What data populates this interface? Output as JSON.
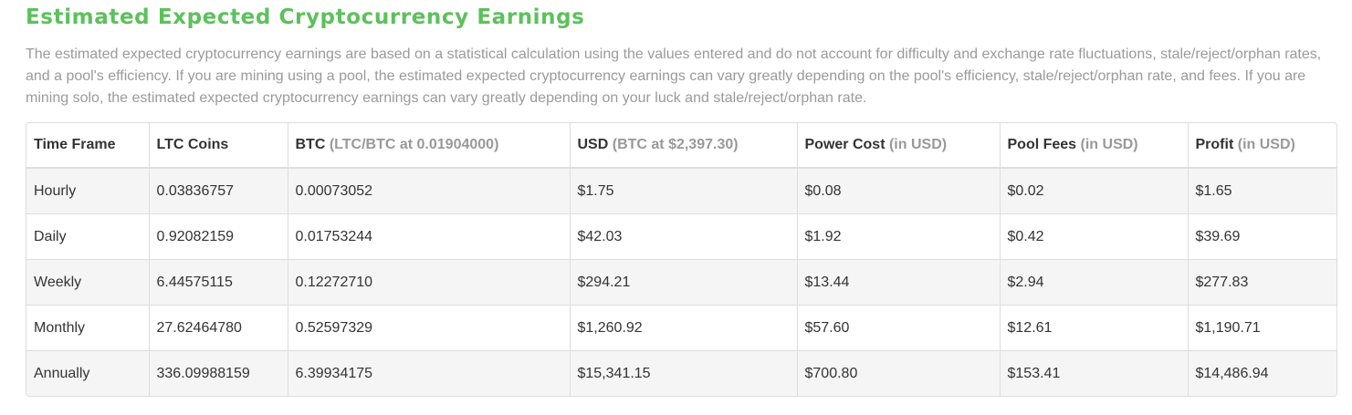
{
  "section": {
    "title": "Estimated Expected Cryptocurrency Earnings",
    "description": "The estimated expected cryptocurrency earnings are based on a statistical calculation using the values entered and do not account for difficulty and exchange rate fluctuations, stale/reject/orphan rates, and a pool's efficiency. If you are mining using a pool, the estimated expected cryptocurrency earnings can vary greatly depending on the pool's efficiency, stale/reject/orphan rate, and fees. If you are mining solo, the estimated expected cryptocurrency earnings can vary greatly depending on your luck and stale/reject/orphan rate."
  },
  "table": {
    "headers": [
      {
        "label": "Time Frame",
        "sub": ""
      },
      {
        "label": "LTC Coins",
        "sub": ""
      },
      {
        "label": "BTC",
        "sub": "(LTC/BTC at 0.01904000)"
      },
      {
        "label": "USD",
        "sub": "(BTC at $2,397.30)"
      },
      {
        "label": "Power Cost",
        "sub": "(in USD)"
      },
      {
        "label": "Pool Fees",
        "sub": "(in USD)"
      },
      {
        "label": "Profit",
        "sub": "(in USD)"
      }
    ],
    "rows": [
      [
        "Hourly",
        "0.03836757",
        "0.00073052",
        "$1.75",
        "$0.08",
        "$0.02",
        "$1.65"
      ],
      [
        "Daily",
        "0.92082159",
        "0.01753244",
        "$42.03",
        "$1.92",
        "$0.42",
        "$39.69"
      ],
      [
        "Weekly",
        "6.44575115",
        "0.12272710",
        "$294.21",
        "$13.44",
        "$2.94",
        "$277.83"
      ],
      [
        "Monthly",
        "27.62464780",
        "0.52597329",
        "$1,260.92",
        "$57.60",
        "$12.61",
        "$1,190.71"
      ],
      [
        "Annually",
        "336.09988159",
        "6.39934175",
        "$15,341.15",
        "$700.80",
        "$153.41",
        "$14,486.94"
      ]
    ]
  },
  "colors": {
    "title": "#5cc15c",
    "description": "#9a9a9a",
    "header_sub": "#999999",
    "stripe": "#f5f5f5",
    "border": "#dddddd"
  }
}
